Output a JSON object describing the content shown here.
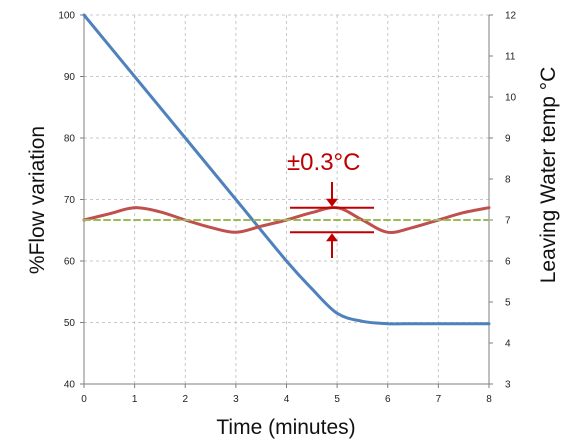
{
  "colors": {
    "flow": "#4f81bd",
    "temp": "#c0504d",
    "setpoint": "#9bbb59",
    "annotation": "#c00000",
    "grid": "#c8c8c8",
    "axis": "#7f7f7f"
  },
  "chart_data": {
    "type": "line",
    "title": "",
    "xlabel": "Time (minutes)",
    "ylabel": "%Flow variation",
    "y2label": "Leaving Water temp °C",
    "xlim": [
      0,
      8
    ],
    "ylim": [
      40,
      100
    ],
    "y2lim": [
      3,
      12
    ],
    "grid": true,
    "x_ticks": [
      "0",
      "1",
      "2",
      "3",
      "4",
      "5",
      "6",
      "7",
      "8"
    ],
    "y_ticks": [
      "40",
      "50",
      "60",
      "70",
      "80",
      "90",
      "100"
    ],
    "y2_ticks": [
      "3",
      "4",
      "5",
      "6",
      "7",
      "8",
      "9",
      "10",
      "11",
      "12"
    ],
    "series": [
      {
        "axis": "left",
        "color": "#4f81bd",
        "x": [
          0,
          1,
          2,
          3,
          4,
          4.5,
          5,
          5.5,
          6,
          6.5,
          7,
          8
        ],
        "y": [
          100,
          90,
          80,
          70,
          60,
          55.5,
          51.5,
          50.2,
          49.8,
          49.8,
          49.8,
          49.8
        ]
      },
      {
        "axis": "right",
        "color": "#c0504d",
        "x": [
          0,
          0.5,
          1,
          1.5,
          2,
          2.5,
          3,
          3.5,
          4,
          4.5,
          5,
          5.5,
          6,
          6.5,
          7,
          7.5,
          8
        ],
        "y": [
          7.0,
          7.15,
          7.3,
          7.2,
          7.0,
          6.82,
          6.7,
          6.85,
          7.0,
          7.18,
          7.3,
          7.0,
          6.7,
          6.82,
          7.0,
          7.18,
          7.3
        ]
      },
      {
        "axis": "right",
        "color": "#9bbb59",
        "dashed": true,
        "x": [
          0,
          8
        ],
        "y": [
          7.0,
          7.0
        ]
      }
    ],
    "annotations": [
      {
        "text": "±0.3°C"
      }
    ]
  }
}
